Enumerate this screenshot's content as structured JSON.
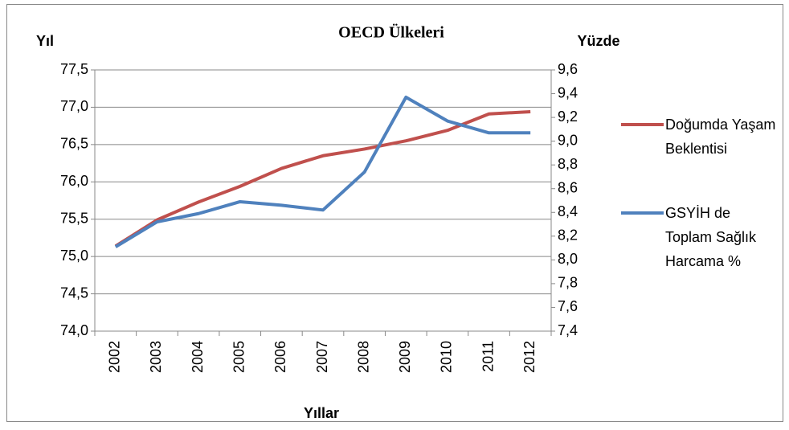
{
  "chart_data": {
    "type": "line",
    "title": "OECD Ülkeleri",
    "y_label": "Yıl",
    "y2_label": "Yüzde",
    "x_label": "Yıllar",
    "categories": [
      "2002",
      "2003",
      "2004",
      "2005",
      "2006",
      "2007",
      "2008",
      "2009",
      "2010",
      "2011",
      "2012"
    ],
    "series": [
      {
        "name": "Doğumda Yaşam Beklentisi",
        "color": "#c0504d",
        "values": [
          75.14,
          75.49,
          75.73,
          75.94,
          76.18,
          76.35,
          76.44,
          76.55,
          76.69,
          76.91,
          76.94
        ]
      },
      {
        "name": "GSYİH de Toplam Sağlık Harcama %",
        "color": "#4f81bd",
        "axis": "y2",
        "values": [
          8.11,
          8.32,
          8.39,
          8.49,
          8.46,
          8.42,
          8.74,
          9.37,
          9.17,
          9.07,
          9.07
        ]
      }
    ],
    "ylim": [
      74.0,
      77.5
    ],
    "yticks": [
      {
        "value": 74.0,
        "label": "74,0"
      },
      {
        "value": 74.5,
        "label": "74,5"
      },
      {
        "value": 75.0,
        "label": "75,0"
      },
      {
        "value": 75.5,
        "label": "75,5"
      },
      {
        "value": 76.0,
        "label": "76,0"
      },
      {
        "value": 76.5,
        "label": "76,5"
      },
      {
        "value": 77.0,
        "label": "77,0"
      },
      {
        "value": 77.5,
        "label": "77,5"
      }
    ],
    "y2lim": [
      7.4,
      9.6
    ],
    "y2ticks": [
      {
        "value": 7.4,
        "label": "7,4"
      },
      {
        "value": 7.6,
        "label": "7,6"
      },
      {
        "value": 7.8,
        "label": "7,8"
      },
      {
        "value": 8.0,
        "label": "8,0"
      },
      {
        "value": 8.2,
        "label": "8,2"
      },
      {
        "value": 8.4,
        "label": "8,4"
      },
      {
        "value": 8.6,
        "label": "8,6"
      },
      {
        "value": 8.8,
        "label": "8,8"
      },
      {
        "value": 9.0,
        "label": "9,0"
      },
      {
        "value": 9.2,
        "label": "9,2"
      },
      {
        "value": 9.4,
        "label": "9,4"
      },
      {
        "value": 9.6,
        "label": "9,6"
      }
    ],
    "grid": true,
    "legend": "right"
  }
}
